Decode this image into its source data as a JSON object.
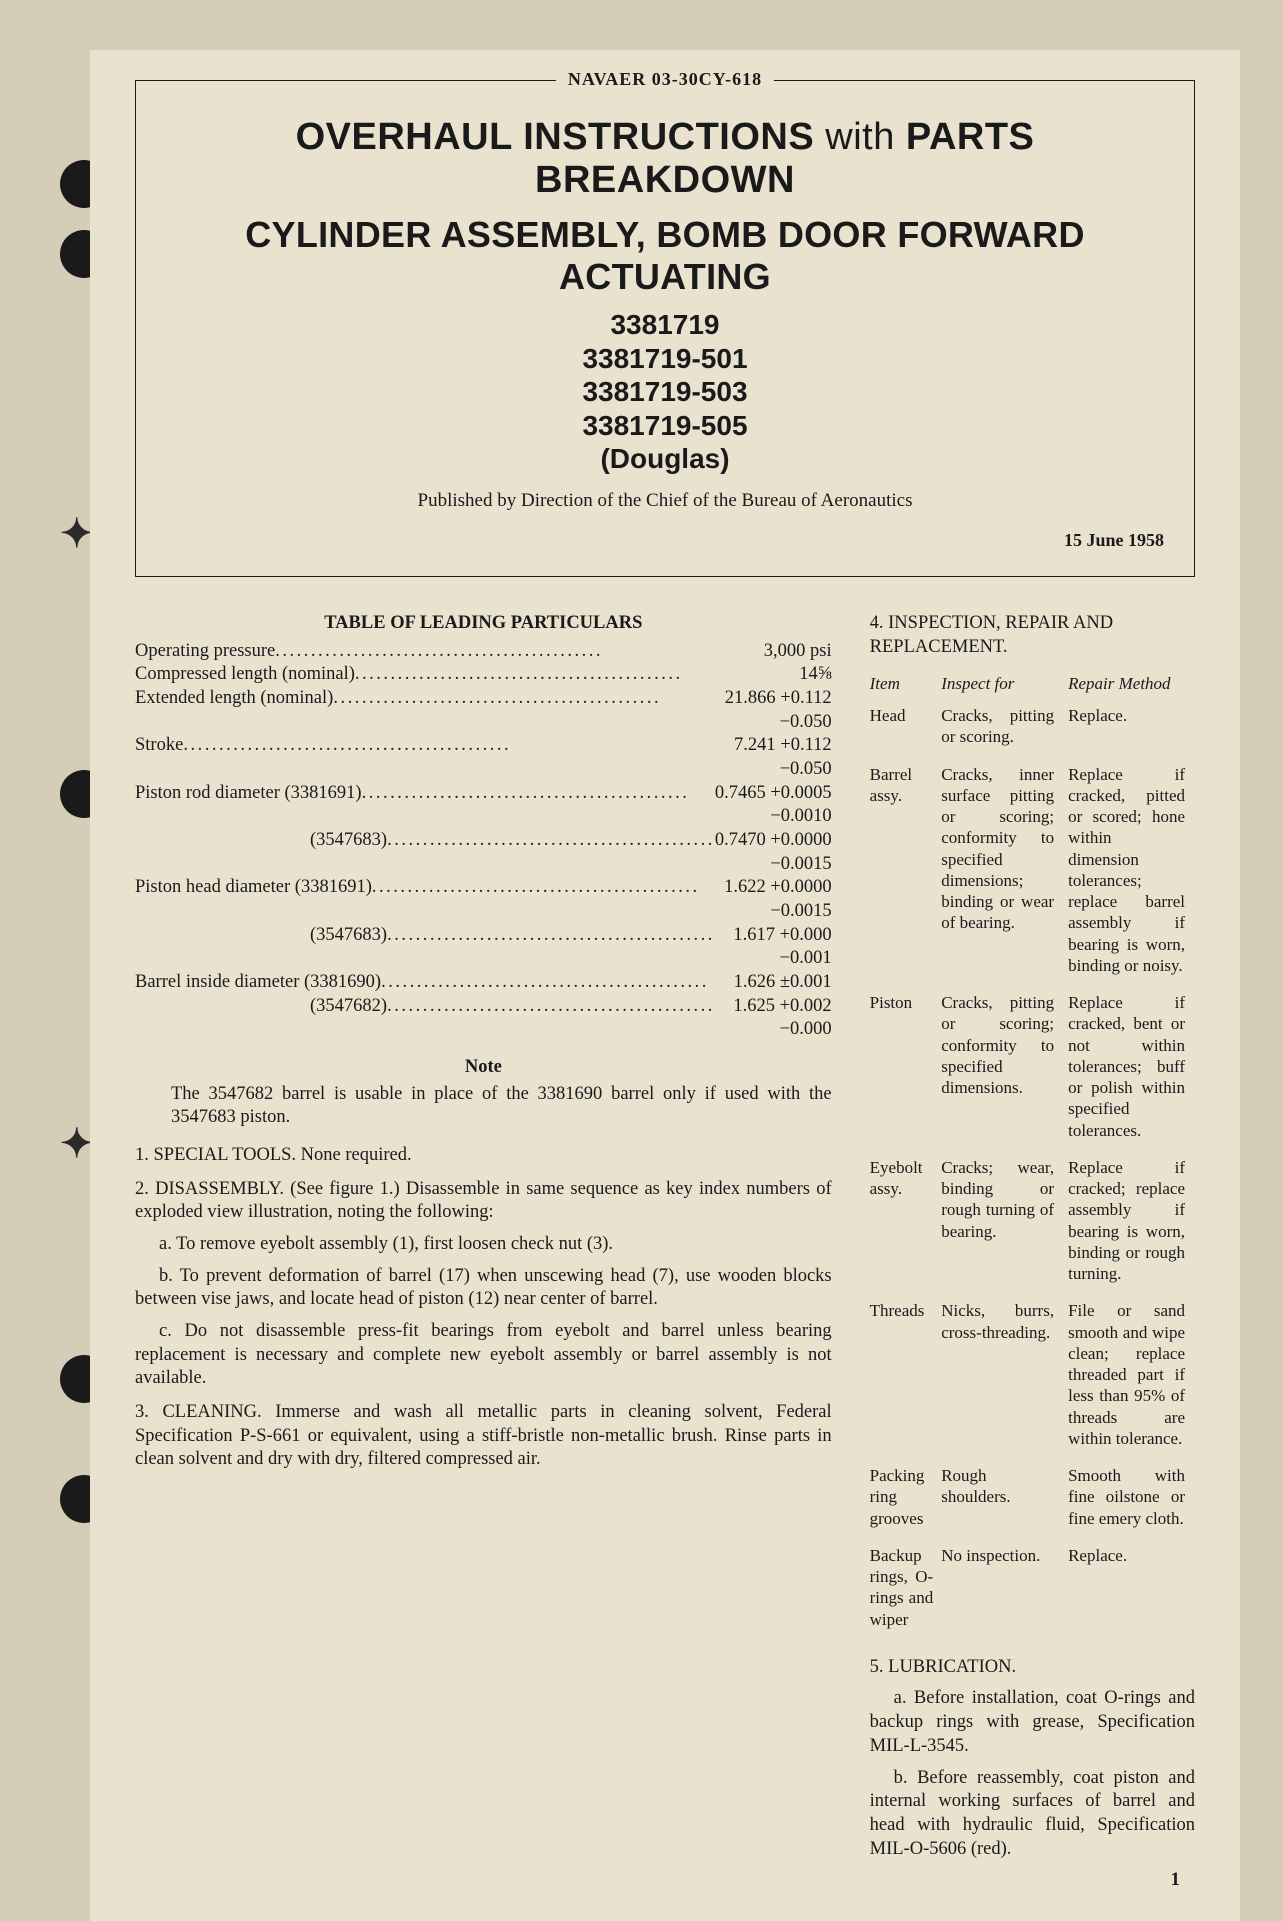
{
  "doc_number": "NAVAER 03-30CY-618",
  "title_line1_a": "OVERHAUL INSTRUCTIONS",
  "title_line1_b": "with",
  "title_line1_c": "PARTS BREAKDOWN",
  "title_line2": "CYLINDER ASSEMBLY, BOMB DOOR FORWARD ACTUATING",
  "part_numbers": [
    "3381719",
    "3381719-501",
    "3381719-503",
    "3381719-505",
    "(Douglas)"
  ],
  "publisher": "Published by Direction of the Chief of the Bureau of Aeronautics",
  "date": "15 June 1958",
  "leading_title": "TABLE OF LEADING PARTICULARS",
  "leading": [
    {
      "label": "Operating pressure",
      "value": "3,000 psi",
      "tol": null,
      "indent": false
    },
    {
      "label": "Compressed length (nominal)",
      "value": "14⅝",
      "tol": null,
      "indent": false
    },
    {
      "label": "Extended length (nominal)",
      "value": "21.866 +0.112",
      "tol": "−0.050",
      "indent": false
    },
    {
      "label": "Stroke",
      "value": "7.241 +0.112",
      "tol": "−0.050",
      "indent": false
    },
    {
      "label": "Piston rod diameter (3381691)",
      "value": "0.7465 +0.0005",
      "tol": "−0.0010",
      "indent": false
    },
    {
      "label": "(3547683)",
      "value": "0.7470 +0.0000",
      "tol": "−0.0015",
      "indent": true
    },
    {
      "label": "Piston head diameter (3381691)",
      "value": "1.622 +0.0000",
      "tol": "−0.0015",
      "indent": false
    },
    {
      "label": "(3547683)",
      "value": "1.617 +0.000",
      "tol": "−0.001",
      "indent": true
    },
    {
      "label": "Barrel inside diameter (3381690)",
      "value": "1.626 ±0.001",
      "tol": null,
      "indent": false
    },
    {
      "label": "(3547682)",
      "value": "1.625 +0.002",
      "tol": "−0.000",
      "indent": true
    }
  ],
  "note_head": "Note",
  "note_body": "The 3547682 barrel is usable in place of the 3381690 barrel only if used with the 3547683 piston.",
  "sections_left": [
    {
      "text": "1. SPECIAL TOOLS. None required."
    },
    {
      "text": "2. DISASSEMBLY. (See figure 1.) Disassemble in same sequence as key index numbers of exploded view illustration, noting the following:"
    },
    {
      "sub": true,
      "text": "a. To remove eyebolt assembly (1), first loosen check nut (3)."
    },
    {
      "sub": true,
      "text": "b. To prevent deformation of barrel (17) when unscewing head (7), use wooden blocks between vise jaws, and locate head of piston (12) near center of barrel."
    },
    {
      "sub": true,
      "text": "c. Do not disassemble press-fit bearings from eyebolt and barrel unless bearing replacement is necessary and complete new eyebolt assembly or barrel assembly is not available."
    },
    {
      "text": "3. CLEANING. Immerse and wash all metallic parts in cleaning solvent, Federal Specification P-S-661 or equivalent, using a stiff-bristle non-metallic brush. Rinse parts in clean solvent and dry with dry, filtered compressed air."
    }
  ],
  "section4_head": "4. INSPECTION, REPAIR AND REPLACEMENT.",
  "insp_headers": [
    "Item",
    "Inspect for",
    "Repair Method"
  ],
  "insp_rows": [
    {
      "item": "Head",
      "inspect": "Cracks, pitting or scoring.",
      "repair": "Replace."
    },
    {
      "item": "Barrel assy.",
      "inspect": "Cracks, inner surface pitting or scoring; conformity to specified dimensions; binding or wear of bearing.",
      "repair": "Replace if cracked, pitted or scored; hone within dimension tolerances; replace barrel assembly if bearing is worn, binding or noisy."
    },
    {
      "item": "Piston",
      "inspect": "Cracks, pitting or scoring; conformity to specified dimensions.",
      "repair": "Replace if cracked, bent or not within tolerances; buff or polish within specified tolerances."
    },
    {
      "item": "Eyebolt assy.",
      "inspect": "Cracks; wear, binding or rough turning of bearing.",
      "repair": "Replace if cracked; replace assembly if bearing is worn, binding or rough turning."
    },
    {
      "item": "Threads",
      "inspect": "Nicks, burrs, cross-threading.",
      "repair": "File or sand smooth and wipe clean; replace threaded part if less than 95% of threads are within tolerance."
    },
    {
      "item": "Packing ring grooves",
      "inspect": "Rough shoulders.",
      "repair": "Smooth with fine oilstone or fine emery cloth."
    },
    {
      "item": "Backup rings, O-rings and wiper",
      "inspect": "No inspection.",
      "repair": "Replace."
    }
  ],
  "section5_head": "5. LUBRICATION.",
  "section5_paras": [
    "a. Before installation, coat O-rings and backup rings with grease, Specification MIL-L-3545.",
    "b. Before reassembly, coat piston and internal working surfaces of barrel and head with hydraulic fluid, Specification MIL-O-5606 (red)."
  ],
  "page_number": "1",
  "colors": {
    "background": "#d4cdb8",
    "paper": "#e8e2cf",
    "ink": "#1a1a1a"
  }
}
